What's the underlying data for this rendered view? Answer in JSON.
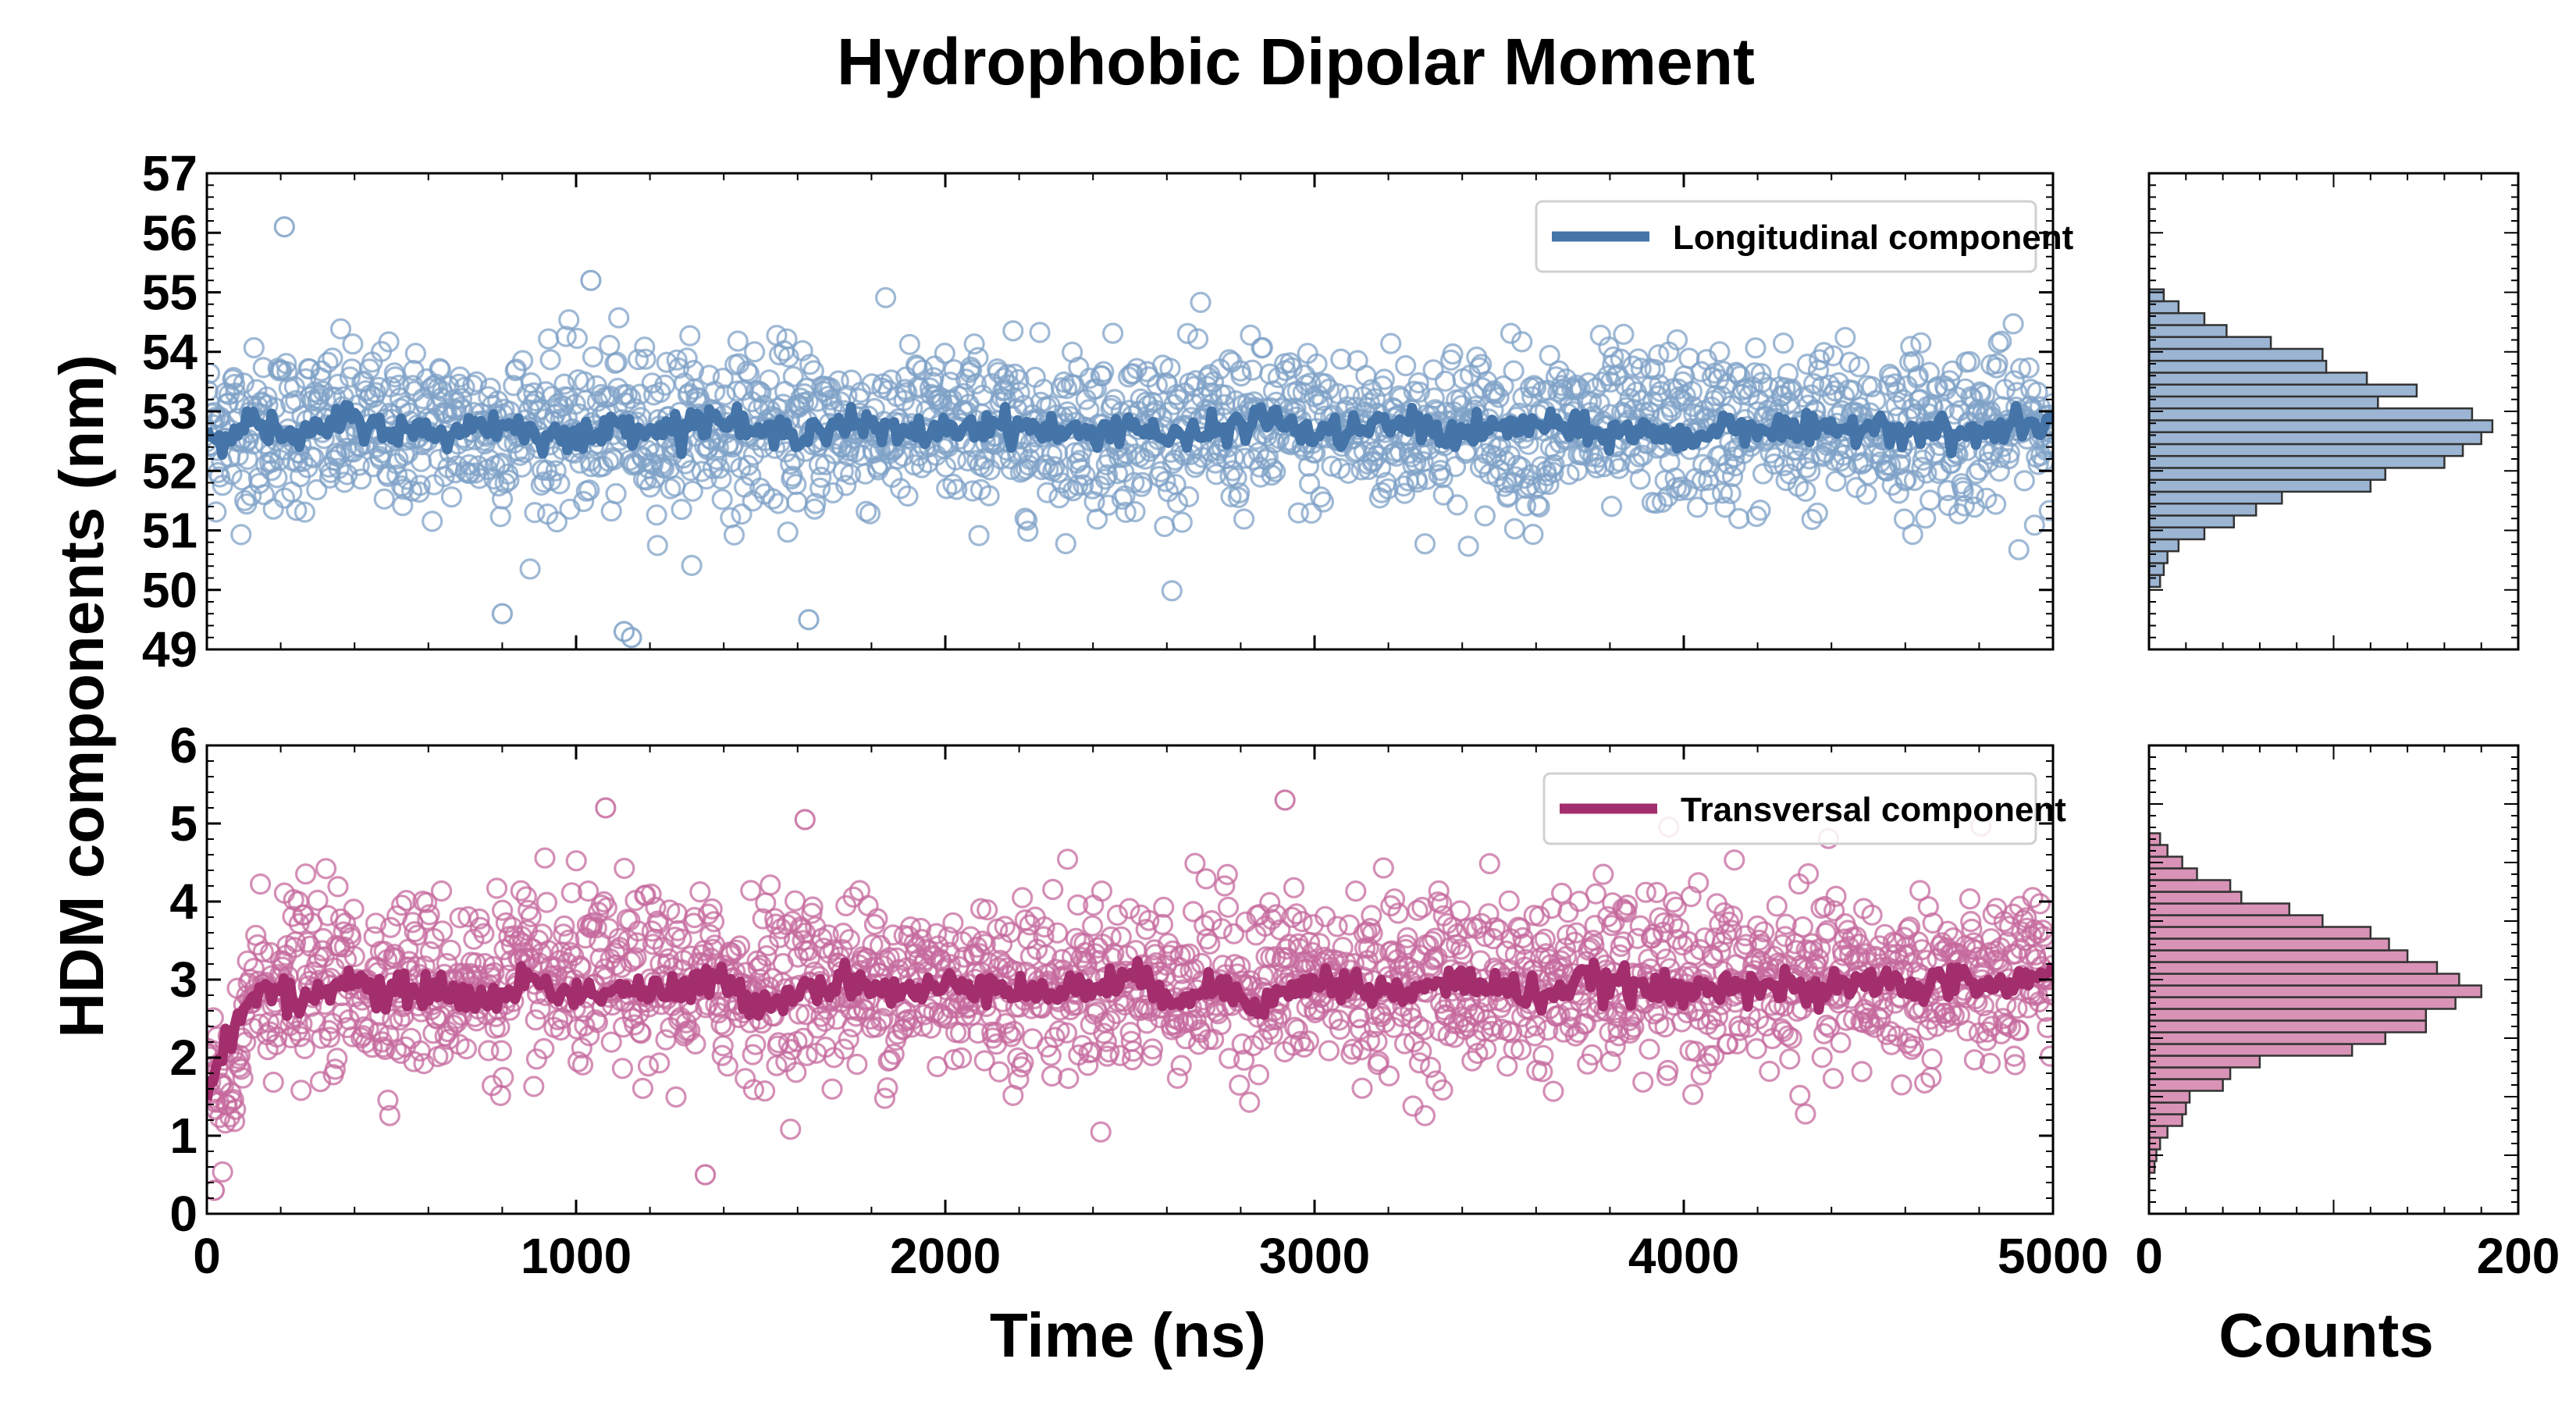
{
  "title": "Hydrophobic Dipolar Moment",
  "chart_data": [
    {
      "type": "scatter",
      "panel": "top-main",
      "legend": {
        "label": "Longitudinal component",
        "placement": "top-right"
      },
      "xlabel": "Time (ns)",
      "ylabel": "HDM components (nm)",
      "xlim": [
        0,
        5000
      ],
      "ylim": [
        49,
        57
      ],
      "xticks": [
        "0",
        "1000",
        "2000",
        "3000",
        "4000",
        "5000"
      ],
      "yticks": [
        "49",
        "50",
        "51",
        "52",
        "53",
        "54",
        "55",
        "56",
        "57"
      ],
      "line_color": "#4474a8",
      "marker_color": "#7fa2c7",
      "scatter_points": 2000,
      "mean": 52.7,
      "std": 0.9,
      "running_mean_values": [
        52.6,
        52.8,
        52.5,
        52.9,
        52.7,
        52.6,
        52.8,
        52.7,
        52.5,
        52.8,
        52.7,
        52.9,
        52.6,
        52.7,
        52.8,
        52.6,
        52.7,
        52.8,
        52.7,
        52.6,
        52.8,
        52.5,
        52.7,
        52.9,
        52.6,
        52.7,
        52.8,
        52.6,
        52.7,
        52.8,
        52.6,
        52.7,
        52.5,
        52.8,
        52.7,
        52.6,
        52.8,
        52.7,
        52.6,
        52.7,
        52.8
      ],
      "annotations": {
        "points": [
          {
            "x": 210,
            "y": 56.1
          },
          {
            "x": 1040,
            "y": 55.2
          },
          {
            "x": 1130,
            "y": 49.3
          },
          {
            "x": 1150,
            "y": 49.2
          },
          {
            "x": 1630,
            "y": 49.5
          },
          {
            "x": 800,
            "y": 49.6
          }
        ]
      }
    },
    {
      "type": "bar",
      "panel": "top-hist",
      "orientation": "horizontal",
      "xlabel": "Counts",
      "xlim": [
        0,
        200
      ],
      "xticks": [
        "0",
        "200"
      ],
      "color": "#9bb5d3",
      "bin_centers": [
        50.15,
        50.35,
        50.55,
        50.75,
        50.95,
        51.15,
        51.35,
        51.55,
        51.75,
        51.95,
        52.15,
        52.35,
        52.55,
        52.75,
        52.95,
        53.15,
        53.35,
        53.55,
        53.75,
        53.95,
        54.15,
        54.35,
        54.55,
        54.75,
        54.95
      ],
      "counts": [
        6,
        8,
        10,
        16,
        30,
        46,
        58,
        72,
        120,
        128,
        160,
        170,
        180,
        186,
        175,
        124,
        145,
        118,
        96,
        94,
        66,
        42,
        30,
        16,
        8
      ]
    },
    {
      "type": "scatter",
      "panel": "bottom-main",
      "legend": {
        "label": "Transversal component",
        "placement": "top-right"
      },
      "xlim": [
        0,
        5000
      ],
      "ylim": [
        0,
        6
      ],
      "xticks": [
        "0",
        "1000",
        "2000",
        "3000",
        "4000",
        "5000"
      ],
      "yticks": [
        "0",
        "1",
        "2",
        "3",
        "4",
        "5",
        "6"
      ],
      "line_color": "#a32e6e",
      "marker_color": "#c56a9d",
      "scatter_points": 2000,
      "mean": 2.95,
      "std": 0.75,
      "running_mean_values": [
        1.6,
        2.9,
        2.7,
        3.0,
        2.8,
        2.9,
        2.7,
        3.0,
        2.8,
        2.9,
        2.8,
        3.0,
        2.7,
        2.9,
        3.0,
        2.8,
        2.9,
        3.0,
        2.8,
        2.9,
        3.0,
        2.8,
        2.9,
        2.7,
        3.0,
        2.9,
        2.8,
        3.0,
        2.9,
        2.8,
        3.0,
        2.9,
        2.8,
        3.0,
        2.9,
        2.8,
        3.0,
        2.9,
        3.0,
        2.9,
        3.1
      ],
      "annotations": {
        "points": [
          {
            "x": 1080,
            "y": 5.2
          },
          {
            "x": 1620,
            "y": 5.05
          },
          {
            "x": 2920,
            "y": 5.3
          },
          {
            "x": 1350,
            "y": 0.5
          },
          {
            "x": 20,
            "y": 0.3
          }
        ]
      }
    },
    {
      "type": "bar",
      "panel": "bottom-hist",
      "orientation": "horizontal",
      "xlabel": "Counts",
      "xlim": [
        0,
        200
      ],
      "xticks": [
        "0",
        "200"
      ],
      "color": "#d993b6",
      "bin_centers": [
        0.6,
        0.75,
        0.9,
        1.05,
        1.2,
        1.35,
        1.5,
        1.65,
        1.8,
        1.95,
        2.1,
        2.25,
        2.4,
        2.55,
        2.7,
        2.85,
        3.0,
        3.15,
        3.3,
        3.45,
        3.6,
        3.75,
        3.9,
        4.05,
        4.2,
        4.35,
        4.5,
        4.65,
        4.8
      ],
      "counts": [
        3,
        4,
        6,
        10,
        18,
        20,
        22,
        40,
        44,
        60,
        110,
        128,
        150,
        150,
        166,
        180,
        168,
        156,
        140,
        130,
        120,
        94,
        76,
        50,
        44,
        26,
        18,
        10,
        6
      ]
    }
  ]
}
